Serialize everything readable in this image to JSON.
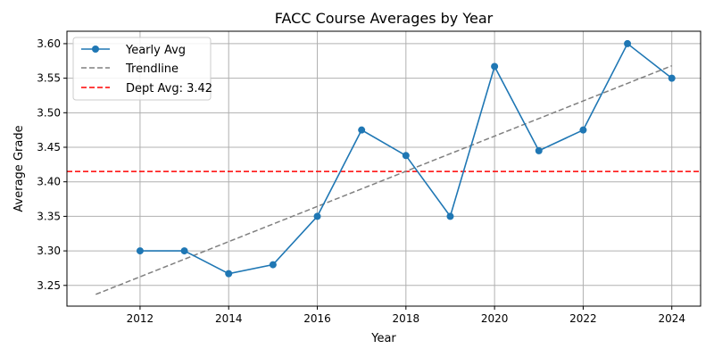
{
  "chart_data": {
    "type": "line",
    "title": "FACC Course Averages by Year",
    "xlabel": "Year",
    "ylabel": "Average Grade",
    "xlim": [
      2010.35,
      2024.65
    ],
    "ylim": [
      3.22,
      3.618
    ],
    "x_ticks": [
      2012,
      2014,
      2016,
      2018,
      2020,
      2022,
      2024
    ],
    "y_ticks": [
      3.25,
      3.3,
      3.35,
      3.4,
      3.45,
      3.5,
      3.55,
      3.6
    ],
    "grid": true,
    "legend_position": "top-left",
    "series": [
      {
        "name": "Yearly Avg",
        "style": "line-marker",
        "color": "#1f77b4",
        "x": [
          2012,
          2013,
          2014,
          2015,
          2016,
          2017,
          2018,
          2019,
          2020,
          2021,
          2022,
          2023,
          2024
        ],
        "y": [
          3.3,
          3.3,
          3.267,
          3.28,
          3.35,
          3.475,
          3.438,
          3.35,
          3.567,
          3.445,
          3.475,
          3.6,
          3.55
        ]
      },
      {
        "name": "Trendline",
        "style": "dashed",
        "color": "#808080",
        "x": [
          2011,
          2024
        ],
        "y": [
          3.237,
          3.568
        ]
      },
      {
        "name": "Dept Avg: 3.42",
        "style": "dashed-horizontal",
        "color": "#ff0000",
        "value": 3.415
      }
    ]
  }
}
